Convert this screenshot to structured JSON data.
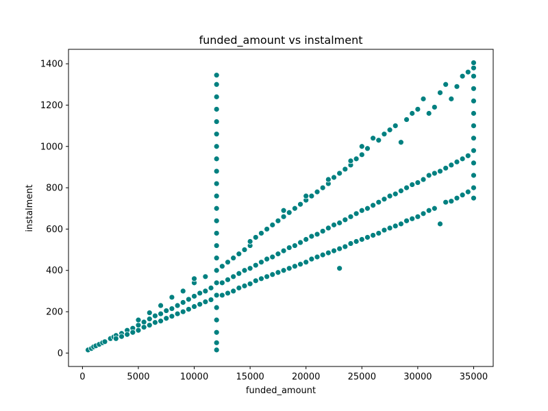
{
  "chart_data": {
    "type": "scatter",
    "title": "funded_amount vs instalment",
    "xlabel": "funded_amount",
    "ylabel": "instalment",
    "xlim": [
      -1250,
      36750
    ],
    "ylim": [
      -65,
      1470
    ],
    "xticks": [
      0,
      5000,
      10000,
      15000,
      20000,
      25000,
      30000,
      35000
    ],
    "yticks": [
      0,
      200,
      400,
      600,
      800,
      1000,
      1200,
      1400
    ],
    "grid": false,
    "legend": "none",
    "marker_color": "#008080",
    "marker_edge_color": "#ffffff",
    "series": [
      {
        "points": [
          [
            500,
            15
          ],
          [
            800,
            22
          ],
          [
            1000,
            30
          ],
          [
            1200,
            35
          ],
          [
            1500,
            42
          ],
          [
            1800,
            50
          ],
          [
            2000,
            55
          ],
          [
            2500,
            70
          ],
          [
            2800,
            78
          ],
          [
            3000,
            85
          ],
          [
            3000,
            70
          ],
          [
            3500,
            95
          ],
          [
            3500,
            80
          ],
          [
            4000,
            110
          ],
          [
            4000,
            90
          ],
          [
            4500,
            120
          ],
          [
            4500,
            100
          ],
          [
            5000,
            135
          ],
          [
            5000,
            110
          ],
          [
            5000,
            160
          ],
          [
            5500,
            150
          ],
          [
            5500,
            125
          ],
          [
            6000,
            165
          ],
          [
            6000,
            135
          ],
          [
            6000,
            195
          ],
          [
            6500,
            180
          ],
          [
            6500,
            148
          ],
          [
            7000,
            190
          ],
          [
            7000,
            155
          ],
          [
            7000,
            230
          ],
          [
            7500,
            205
          ],
          [
            7500,
            168
          ],
          [
            8000,
            215
          ],
          [
            8000,
            178
          ],
          [
            8000,
            270
          ],
          [
            8500,
            230
          ],
          [
            8500,
            190
          ],
          [
            9000,
            245
          ],
          [
            9000,
            200
          ],
          [
            9000,
            300
          ],
          [
            9500,
            260
          ],
          [
            9500,
            212
          ],
          [
            10000,
            275
          ],
          [
            10000,
            225
          ],
          [
            10000,
            340
          ],
          [
            10000,
            360
          ],
          [
            10500,
            290
          ],
          [
            10500,
            236
          ],
          [
            11000,
            300
          ],
          [
            11000,
            248
          ],
          [
            11000,
            370
          ],
          [
            11500,
            315
          ],
          [
            11500,
            258
          ],
          [
            12000,
            15
          ],
          [
            12000,
            50
          ],
          [
            12000,
            100
          ],
          [
            12000,
            160
          ],
          [
            12000,
            220
          ],
          [
            12000,
            280
          ],
          [
            12000,
            340
          ],
          [
            12000,
            400
          ],
          [
            12000,
            460
          ],
          [
            12000,
            520
          ],
          [
            12000,
            580
          ],
          [
            12000,
            640
          ],
          [
            12000,
            700
          ],
          [
            12000,
            760
          ],
          [
            12000,
            820
          ],
          [
            12000,
            880
          ],
          [
            12000,
            940
          ],
          [
            12000,
            1000
          ],
          [
            12000,
            1060
          ],
          [
            12000,
            1120
          ],
          [
            12000,
            1180
          ],
          [
            12000,
            1240
          ],
          [
            12000,
            1300
          ],
          [
            12000,
            1345
          ],
          [
            12500,
            340
          ],
          [
            12500,
            280
          ],
          [
            12500,
            420
          ],
          [
            13000,
            355
          ],
          [
            13000,
            290
          ],
          [
            13000,
            440
          ],
          [
            13500,
            370
          ],
          [
            13500,
            300
          ],
          [
            13500,
            460
          ],
          [
            14000,
            385
          ],
          [
            14000,
            315
          ],
          [
            14000,
            480
          ],
          [
            14500,
            400
          ],
          [
            14500,
            325
          ],
          [
            14500,
            500
          ],
          [
            15000,
            410
          ],
          [
            15000,
            335
          ],
          [
            15000,
            520
          ],
          [
            15000,
            540
          ],
          [
            15500,
            425
          ],
          [
            15500,
            350
          ],
          [
            15500,
            560
          ],
          [
            16000,
            440
          ],
          [
            16000,
            360
          ],
          [
            16000,
            580
          ],
          [
            16500,
            455
          ],
          [
            16500,
            370
          ],
          [
            16500,
            600
          ],
          [
            17000,
            465
          ],
          [
            17000,
            380
          ],
          [
            17000,
            620
          ],
          [
            17500,
            480
          ],
          [
            17500,
            390
          ],
          [
            17500,
            640
          ],
          [
            18000,
            495
          ],
          [
            18000,
            400
          ],
          [
            18000,
            660
          ],
          [
            18000,
            690
          ],
          [
            18500,
            510
          ],
          [
            18500,
            410
          ],
          [
            18500,
            680
          ],
          [
            19000,
            520
          ],
          [
            19000,
            420
          ],
          [
            19000,
            700
          ],
          [
            19500,
            535
          ],
          [
            19500,
            430
          ],
          [
            19500,
            720
          ],
          [
            20000,
            550
          ],
          [
            20000,
            440
          ],
          [
            20000,
            740
          ],
          [
            20000,
            760
          ],
          [
            20500,
            565
          ],
          [
            20500,
            455
          ],
          [
            20500,
            760
          ],
          [
            21000,
            575
          ],
          [
            21000,
            465
          ],
          [
            21000,
            780
          ],
          [
            21500,
            590
          ],
          [
            21500,
            475
          ],
          [
            21500,
            800
          ],
          [
            22000,
            605
          ],
          [
            22000,
            485
          ],
          [
            22000,
            820
          ],
          [
            22000,
            840
          ],
          [
            22500,
            620
          ],
          [
            22500,
            495
          ],
          [
            22500,
            850
          ],
          [
            23000,
            630
          ],
          [
            23000,
            410
          ],
          [
            23000,
            505
          ],
          [
            23000,
            870
          ],
          [
            23500,
            645
          ],
          [
            23500,
            515
          ],
          [
            23500,
            890
          ],
          [
            24000,
            660
          ],
          [
            24000,
            530
          ],
          [
            24000,
            910
          ],
          [
            24000,
            930
          ],
          [
            24500,
            675
          ],
          [
            24500,
            540
          ],
          [
            24500,
            940
          ],
          [
            25000,
            690
          ],
          [
            25000,
            550
          ],
          [
            25000,
            960
          ],
          [
            25000,
            1000
          ],
          [
            25500,
            700
          ],
          [
            25500,
            560
          ],
          [
            25500,
            990
          ],
          [
            26000,
            715
          ],
          [
            26000,
            570
          ],
          [
            26000,
            1040
          ],
          [
            26500,
            730
          ],
          [
            26500,
            580
          ],
          [
            26500,
            1030
          ],
          [
            27000,
            745
          ],
          [
            27000,
            595
          ],
          [
            27000,
            1060
          ],
          [
            27500,
            760
          ],
          [
            27500,
            605
          ],
          [
            27500,
            1080
          ],
          [
            28000,
            770
          ],
          [
            28000,
            615
          ],
          [
            28000,
            1100
          ],
          [
            28500,
            785
          ],
          [
            28500,
            625
          ],
          [
            28500,
            1020
          ],
          [
            29000,
            800
          ],
          [
            29000,
            640
          ],
          [
            29000,
            1130
          ],
          [
            29500,
            815
          ],
          [
            29500,
            650
          ],
          [
            29500,
            1160
          ],
          [
            30000,
            825
          ],
          [
            30000,
            660
          ],
          [
            30000,
            1180
          ],
          [
            30500,
            840
          ],
          [
            30500,
            675
          ],
          [
            30500,
            1230
          ],
          [
            31000,
            860
          ],
          [
            31000,
            690
          ],
          [
            31000,
            1160
          ],
          [
            31500,
            870
          ],
          [
            31500,
            700
          ],
          [
            31500,
            1190
          ],
          [
            32000,
            880
          ],
          [
            32000,
            625
          ],
          [
            32000,
            1260
          ],
          [
            32500,
            895
          ],
          [
            32500,
            730
          ],
          [
            32500,
            1300
          ],
          [
            33000,
            910
          ],
          [
            33000,
            735
          ],
          [
            33000,
            1230
          ],
          [
            33500,
            925
          ],
          [
            33500,
            750
          ],
          [
            33500,
            1290
          ],
          [
            34000,
            940
          ],
          [
            34000,
            765
          ],
          [
            34000,
            1340
          ],
          [
            34500,
            955
          ],
          [
            34500,
            780
          ],
          [
            34500,
            1360
          ],
          [
            35000,
            750
          ],
          [
            35000,
            800
          ],
          [
            35000,
            860
          ],
          [
            35000,
            920
          ],
          [
            35000,
            980
          ],
          [
            35000,
            1040
          ],
          [
            35000,
            1100
          ],
          [
            35000,
            1160
          ],
          [
            35000,
            1220
          ],
          [
            35000,
            1280
          ],
          [
            35000,
            1340
          ],
          [
            35000,
            1380
          ],
          [
            35000,
            1405
          ]
        ]
      }
    ]
  }
}
